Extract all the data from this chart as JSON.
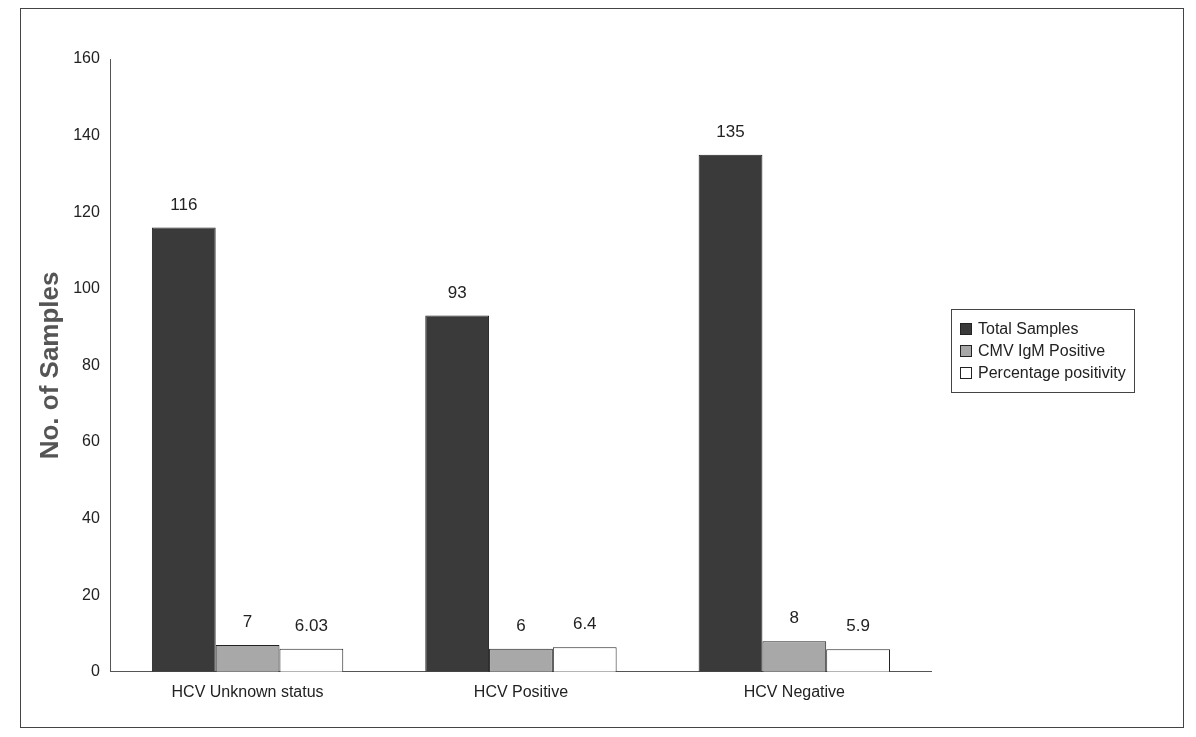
{
  "chart_data": {
    "type": "bar",
    "ylabel": "No. of Samples",
    "categories": [
      "HCV Unknown status",
      "HCV Positive",
      "HCV Negative"
    ],
    "series": [
      {
        "name": "Total Samples",
        "color": "#3a3a3a",
        "values": [
          116,
          93,
          135
        ]
      },
      {
        "name": "CMV IgM Positive",
        "color": "#a8a8a8",
        "values": [
          7,
          6,
          8
        ]
      },
      {
        "name": "Percentage positivity",
        "color": "#ffffff",
        "values": [
          6.03,
          6.4,
          5.9
        ]
      }
    ],
    "ylim": [
      0,
      160
    ],
    "yticks": [
      0,
      20,
      40,
      60,
      80,
      100,
      120,
      140,
      160
    ],
    "grid": false,
    "legend": "right",
    "data_labels": true
  }
}
